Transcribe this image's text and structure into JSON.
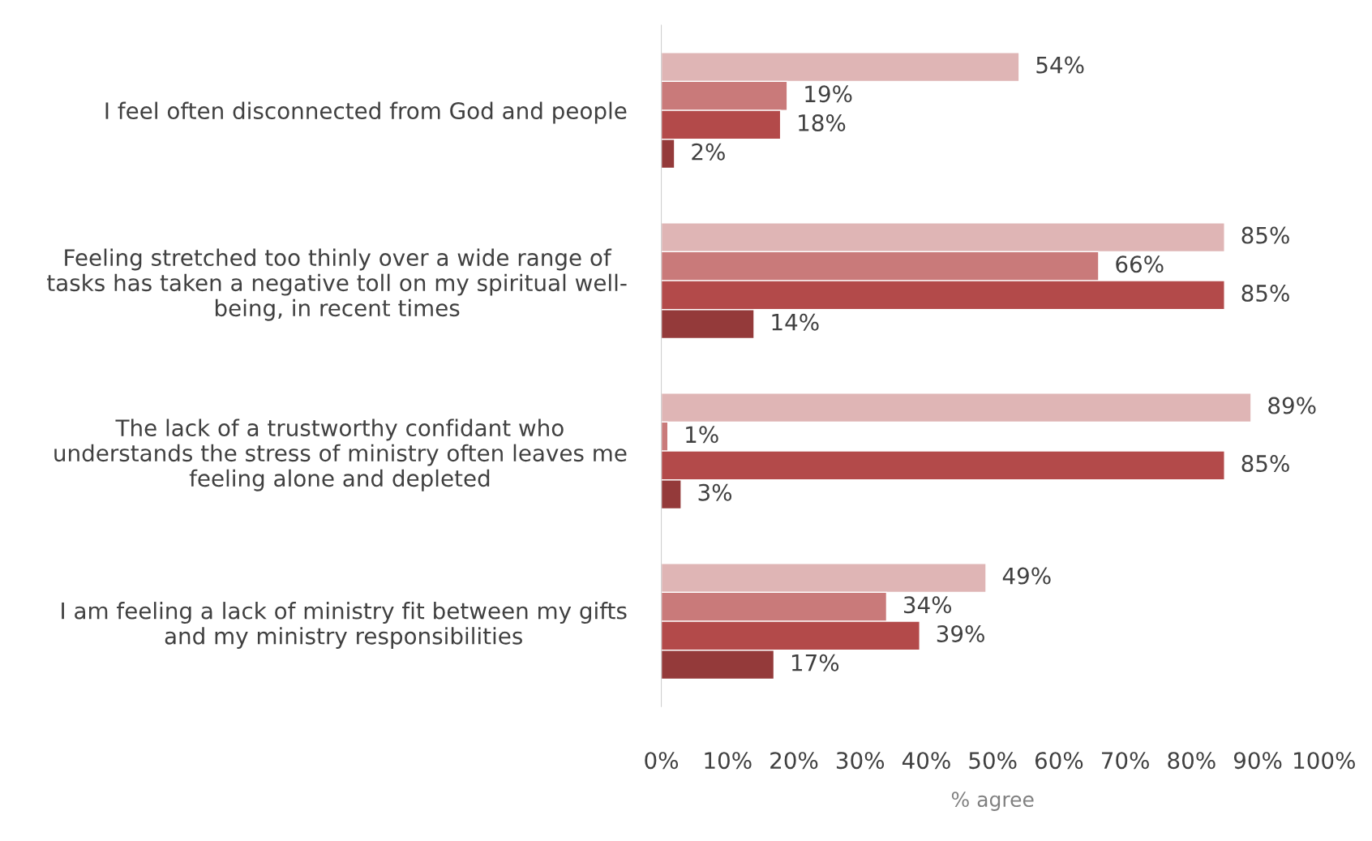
{
  "chart_data": {
    "type": "bar",
    "orientation": "horizontal",
    "xlabel": "% agree",
    "categories": [
      "I feel often disconnected from God and people",
      "Feeling stretched too thinly over a wide range of\ntasks has taken a negative toll on my spiritual well-\nbeing, in recent times",
      "The lack of a trustworthy confidant who\nunderstands the stress of ministry often leaves me\nfeeling alone and depleted",
      "I am feeling a lack of ministry fit between my gifts\nand my ministry responsibilities"
    ],
    "series": [
      {
        "color": "#dfb5b5",
        "values": [
          54,
          85,
          89,
          49
        ],
        "value_labels": [
          "54%",
          "85%",
          "89%",
          "49%"
        ]
      },
      {
        "color": "#c97a7a",
        "values": [
          19,
          66,
          1,
          34
        ],
        "value_labels": [
          "19%",
          "66%",
          "1%",
          "34%"
        ]
      },
      {
        "color": "#b34a4a",
        "values": [
          18,
          85,
          85,
          39
        ],
        "value_labels": [
          "18%",
          "85%",
          "85%",
          "39%"
        ]
      },
      {
        "color": "#943a3a",
        "values": [
          2,
          14,
          3,
          17
        ],
        "value_labels": [
          "2%",
          "14%",
          "3%",
          "17%"
        ]
      }
    ],
    "xlim": [
      0,
      100
    ],
    "xticks": [
      {
        "value": 0,
        "label": "0%"
      },
      {
        "value": 10,
        "label": "10%"
      },
      {
        "value": 20,
        "label": "20%"
      },
      {
        "value": 30,
        "label": "30%"
      },
      {
        "value": 40,
        "label": "40%"
      },
      {
        "value": 50,
        "label": "50%"
      },
      {
        "value": 60,
        "label": "60%"
      },
      {
        "value": 70,
        "label": "70%"
      },
      {
        "value": 80,
        "label": "80%"
      },
      {
        "value": 90,
        "label": "90%"
      },
      {
        "value": 100,
        "label": "100%"
      }
    ],
    "grid": false,
    "legend": false
  }
}
